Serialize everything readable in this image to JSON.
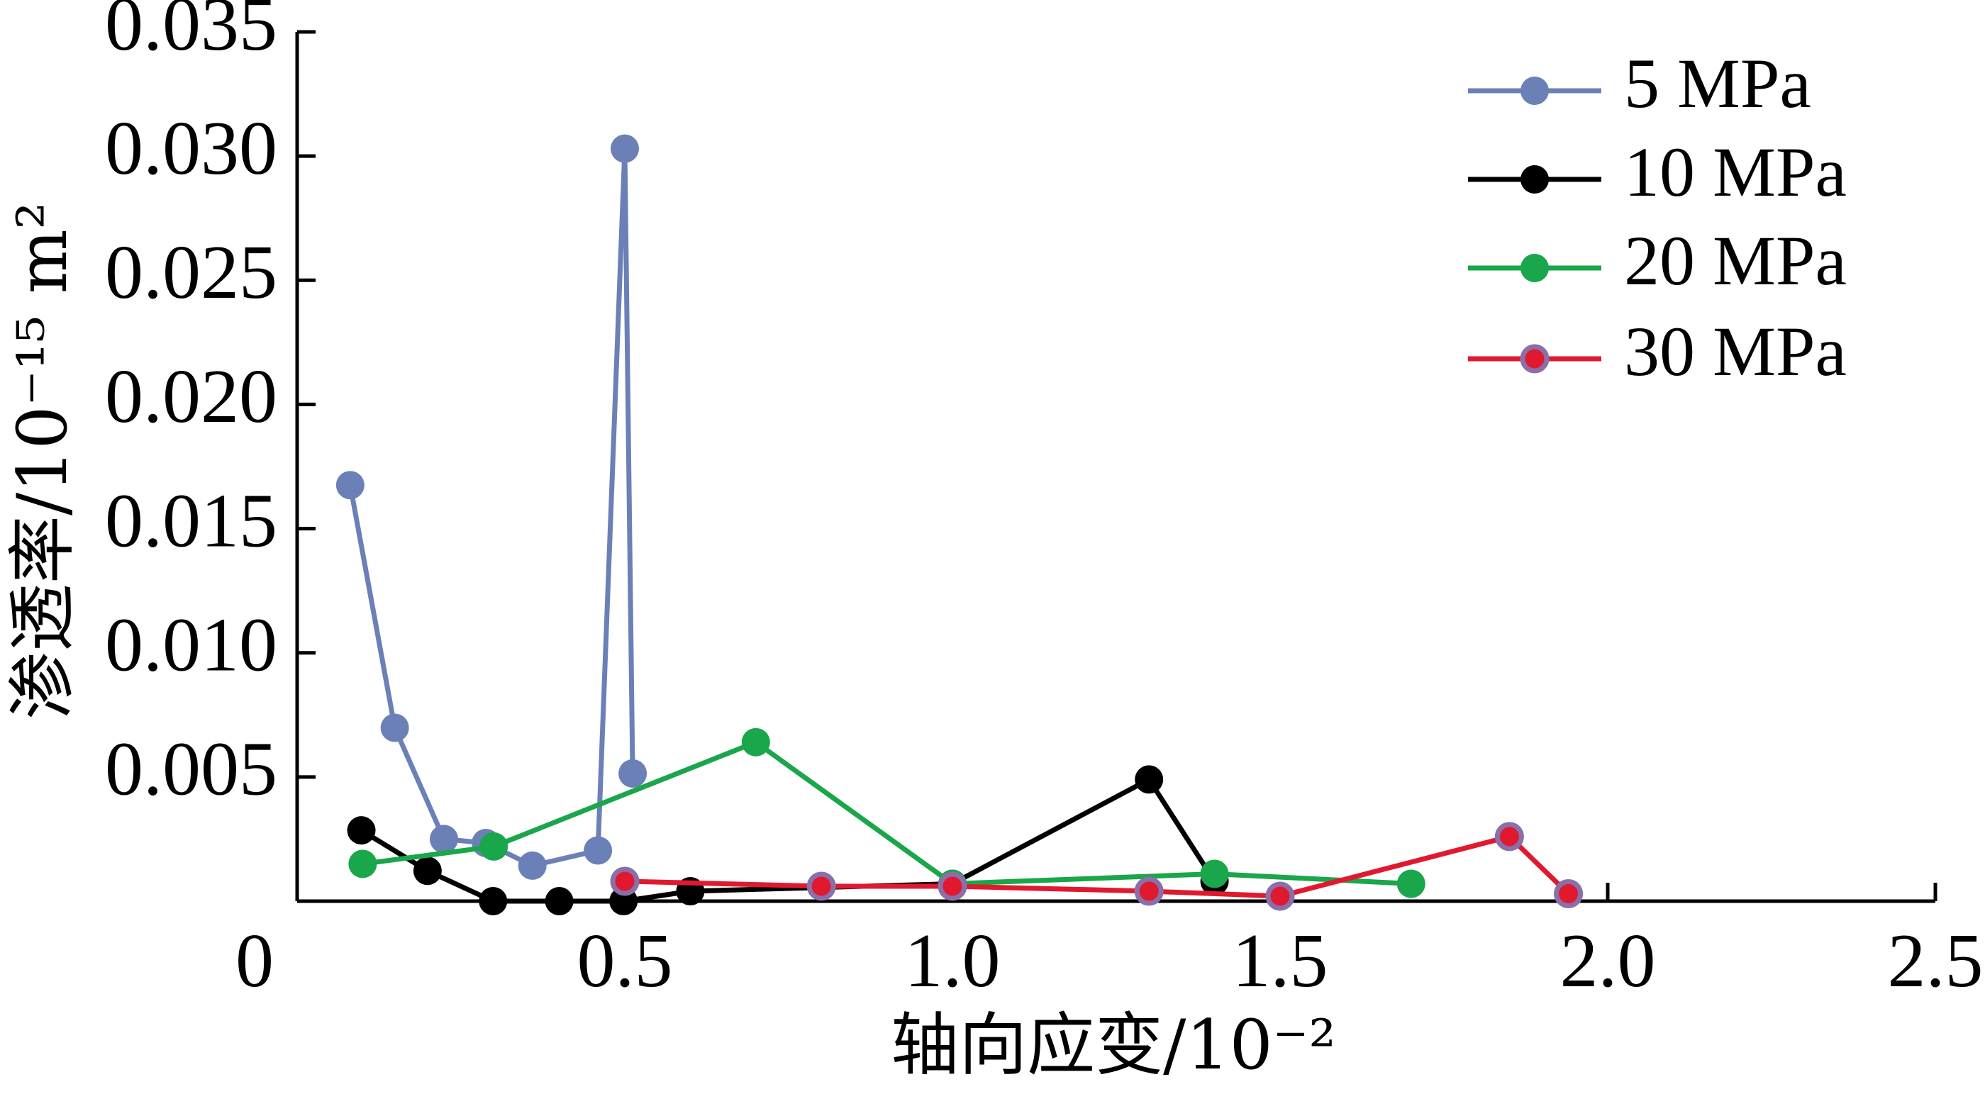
{
  "chart_data": {
    "type": "line",
    "x_label": "轴向应变/10⁻²",
    "y_label": "渗透率/10⁻¹⁵ m²",
    "xlim": [
      0,
      2.5
    ],
    "ylim": [
      0,
      0.035
    ],
    "xticks": [
      0,
      0.5,
      {
        "value": 1,
        "label": "1.0"
      },
      1.5,
      {
        "value": 2,
        "label": "2.0"
      },
      2.5
    ],
    "yticks": [
      0.005,
      {
        "value": 0.01,
        "label": "0.010"
      },
      0.015,
      {
        "value": 0.02,
        "label": "0.020"
      },
      0.025,
      {
        "value": 0.03,
        "label": "0.030"
      },
      0.035
    ],
    "legend": "upper right",
    "series": [
      {
        "name": "5 MPa",
        "color": "#6b80b6",
        "x": [
          0.081,
          0.149,
          0.224,
          0.288,
          0.359,
          0.459,
          0.5,
          0.512
        ],
        "values": [
          0.01675,
          0.00698,
          0.0025,
          0.00234,
          0.00143,
          0.00204,
          0.0303,
          0.00514
        ]
      },
      {
        "name": "10 MPa",
        "color": "#000000",
        "x": [
          0.098,
          0.199,
          0.299,
          0.4,
          0.498,
          0.6,
          1.0,
          1.3,
          1.4
        ],
        "values": [
          0.00285,
          0.00122,
          0,
          0,
          0,
          0.0004,
          0.0007,
          0.0049,
          0.0008
        ]
      },
      {
        "name": "20 MPa",
        "color": "#1aa64a",
        "x": [
          0.1,
          0.3,
          0.7,
          1.0,
          1.4,
          1.7
        ],
        "values": [
          0.0015,
          0.0022,
          0.0064,
          0.0007,
          0.0011,
          0.0007
        ]
      },
      {
        "name": "30 MPa",
        "color": "#e0192f",
        "x": [
          0.5,
          0.8,
          1.0,
          1.3,
          1.5,
          1.85,
          1.94
        ],
        "values": [
          0.0008,
          0.0006,
          0.0006,
          0.0004,
          0.0002,
          0.0026,
          0.0003
        ]
      }
    ]
  }
}
